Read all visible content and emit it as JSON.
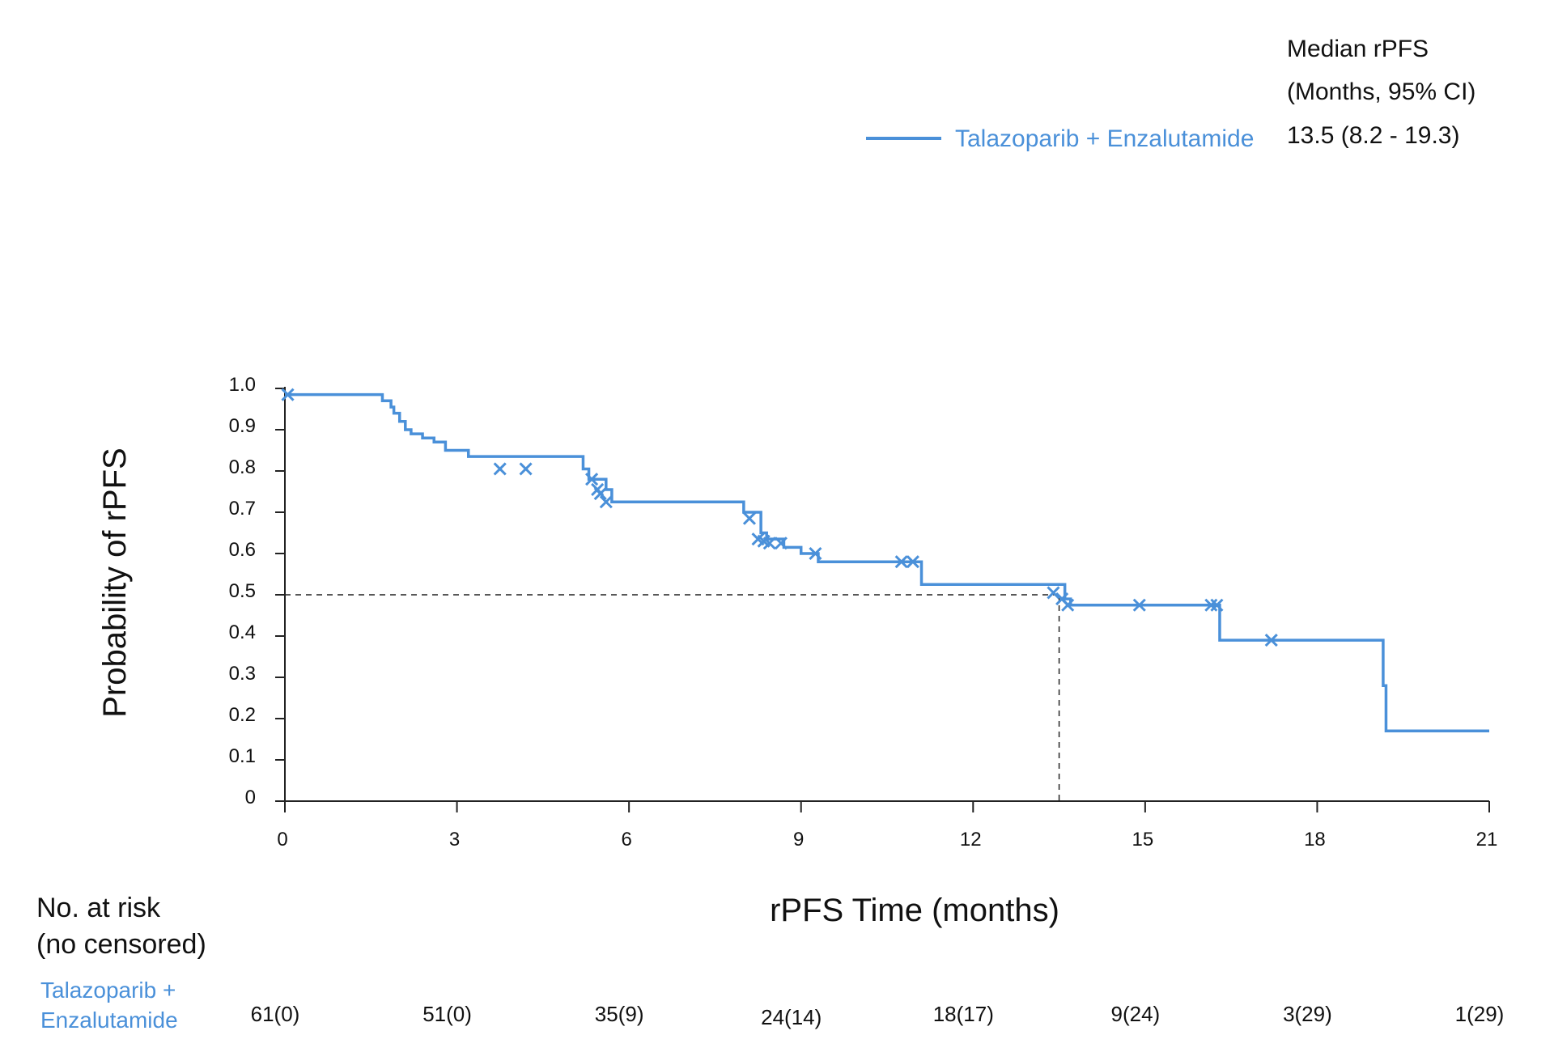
{
  "median_header": {
    "line1": "Median rPFS",
    "line2": "(Months, 95% CI)"
  },
  "risk_table": {
    "title_line1": "No. at risk",
    "title_line2": "(no censored)",
    "group_line1": "Talazoparib +",
    "group_line2": "Enzalutamide",
    "values": [
      "61(0)",
      "51(0)",
      "35(9)",
      "24(14)",
      "18(17)",
      "9(24)",
      "3(29)",
      "1(29)"
    ]
  },
  "chart_data": {
    "type": "line",
    "step": true,
    "xlabel": "rPFS Time (months)",
    "ylabel": "Probability of rPFS",
    "xlim": [
      0,
      21
    ],
    "ylim": [
      0,
      1.0
    ],
    "xticks": [
      0,
      3,
      6,
      9,
      12,
      15,
      18,
      21
    ],
    "yticks": [
      0,
      0.1,
      0.2,
      0.3,
      0.4,
      0.5,
      0.6,
      0.7,
      0.8,
      0.9,
      1.0
    ],
    "ytick_labels": [
      "0",
      "0.1",
      "0.2",
      "0.3",
      "0.4",
      "0.5",
      "0.6",
      "0.7",
      "0.8",
      "0.9",
      "1.0"
    ],
    "grid": false,
    "legend_position": "top-right",
    "series": [
      {
        "name": "Talazoparib + Enzalutamide",
        "color": "#4a90d9",
        "median": "13.5 (8.2 - 19.3)",
        "x": [
          0,
          1.5,
          1.6,
          1.7,
          1.8,
          1.85,
          1.9,
          2.0,
          2.1,
          2.2,
          2.4,
          2.6,
          2.8,
          3.2,
          5.2,
          5.3,
          5.6,
          5.7,
          7.4,
          8.0,
          8.2,
          8.3,
          8.4,
          8.7,
          9.0,
          9.3,
          10.8,
          11.1,
          13.5,
          13.6,
          13.7,
          16.2,
          16.3,
          19.1,
          19.15,
          19.2,
          19.4,
          21.0
        ],
        "y": [
          0.985,
          0.985,
          0.985,
          0.97,
          0.97,
          0.955,
          0.94,
          0.92,
          0.9,
          0.89,
          0.88,
          0.87,
          0.85,
          0.835,
          0.805,
          0.78,
          0.755,
          0.725,
          0.725,
          0.7,
          0.7,
          0.65,
          0.635,
          0.615,
          0.6,
          0.58,
          0.58,
          0.525,
          0.525,
          0.49,
          0.475,
          0.475,
          0.39,
          0.39,
          0.28,
          0.17,
          0.17,
          0.17
        ],
        "censored": [
          {
            "x": 0.05,
            "y": 0.985
          },
          {
            "x": 3.75,
            "y": 0.805
          },
          {
            "x": 4.2,
            "y": 0.805
          },
          {
            "x": 5.35,
            "y": 0.78
          },
          {
            "x": 5.45,
            "y": 0.755
          },
          {
            "x": 5.5,
            "y": 0.745
          },
          {
            "x": 5.6,
            "y": 0.725
          },
          {
            "x": 8.1,
            "y": 0.685
          },
          {
            "x": 8.25,
            "y": 0.635
          },
          {
            "x": 8.35,
            "y": 0.63
          },
          {
            "x": 8.45,
            "y": 0.625
          },
          {
            "x": 8.65,
            "y": 0.625
          },
          {
            "x": 9.25,
            "y": 0.6
          },
          {
            "x": 10.75,
            "y": 0.58
          },
          {
            "x": 10.95,
            "y": 0.58
          },
          {
            "x": 13.4,
            "y": 0.505
          },
          {
            "x": 13.55,
            "y": 0.49
          },
          {
            "x": 13.65,
            "y": 0.475
          },
          {
            "x": 14.9,
            "y": 0.475
          },
          {
            "x": 16.15,
            "y": 0.475
          },
          {
            "x": 16.25,
            "y": 0.475
          },
          {
            "x": 17.2,
            "y": 0.39
          }
        ]
      }
    ],
    "median_reference": {
      "x": 13.5,
      "y": 0.5
    }
  }
}
